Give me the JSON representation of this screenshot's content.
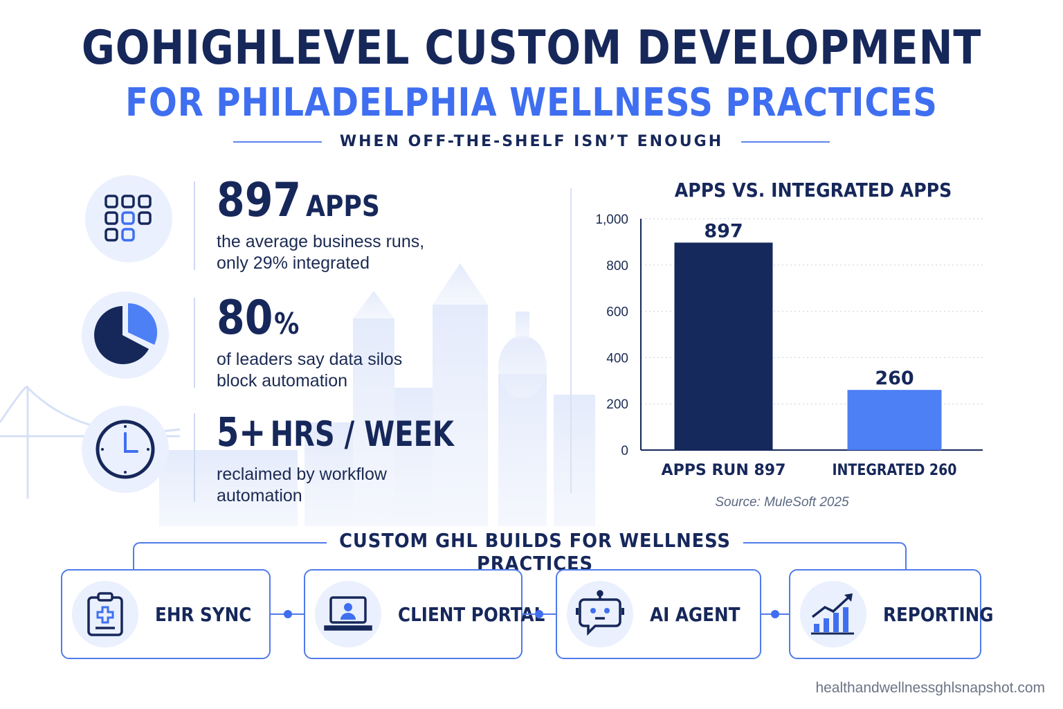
{
  "header": {
    "title": "GOHIGHLEVEL CUSTOM DEVELOPMENT",
    "subtitle": "FOR PHILADELPHIA WELLNESS PRACTICES",
    "tagline": "WHEN OFF-THE-SHELF ISN’T ENOUGH"
  },
  "stats": [
    {
      "value": "897",
      "unit": "APPS",
      "line1": "the average business runs,",
      "line2": "only 29% integrated",
      "icon": "app-grid-icon"
    },
    {
      "value": "80",
      "unit": "%",
      "line1": "of leaders say data silos",
      "line2": "block automation",
      "icon": "pie-chart-icon"
    },
    {
      "value": "5+",
      "unit": "HRS / WEEK",
      "line1": "reclaimed by workflow",
      "line2": "automation",
      "icon": "clock-icon"
    }
  ],
  "chart_data": {
    "type": "bar",
    "title": "APPS VS. INTEGRATED APPS",
    "categories": [
      "APPS RUN 897",
      "INTEGRATED 260"
    ],
    "values": [
      897,
      260
    ],
    "data_labels": [
      "897",
      "260"
    ],
    "ylim": [
      0,
      1000
    ],
    "yticks": [
      0,
      200,
      400,
      600,
      800,
      1000
    ],
    "ytick_labels": [
      "0",
      "200",
      "400",
      "600",
      "800",
      "1,000"
    ],
    "grid": true,
    "legend": "none",
    "colors": [
      "#15295c",
      "#4d7ff5"
    ],
    "source": "Source: MuleSoft 2025"
  },
  "builds": {
    "title": "CUSTOM GHL BUILDS FOR WELLNESS PRACTICES",
    "items": [
      {
        "label": "EHR SYNC",
        "icon": "clipboard-medical-icon"
      },
      {
        "label": "CLIENT PORTAL",
        "icon": "laptop-user-icon"
      },
      {
        "label": "AI AGENT",
        "icon": "robot-chat-icon"
      },
      {
        "label": "REPORTING",
        "icon": "bar-chart-growth-icon"
      }
    ]
  },
  "footer": {
    "url": "healthandwellnessghlsnapshot.com"
  },
  "colors": {
    "navy": "#16275a",
    "accent": "#3f6ff0",
    "light": "#eaf0fd"
  }
}
